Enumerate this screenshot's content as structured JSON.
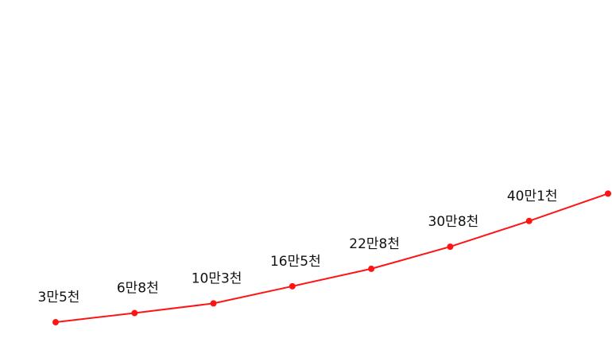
{
  "chart_data": {
    "type": "line",
    "series": [
      {
        "color": "#ff1414",
        "values": [
          35000,
          68000,
          103000,
          165000,
          228000,
          308000,
          401000,
          500000
        ],
        "labels": [
          "3만5천",
          "6만8천",
          "10만3천",
          "16만5천",
          "22만8천",
          "30만8천",
          "40만1천",
          ""
        ]
      }
    ],
    "grid": false,
    "legend": "none",
    "ylim": [
      -80000,
      1200000
    ]
  }
}
